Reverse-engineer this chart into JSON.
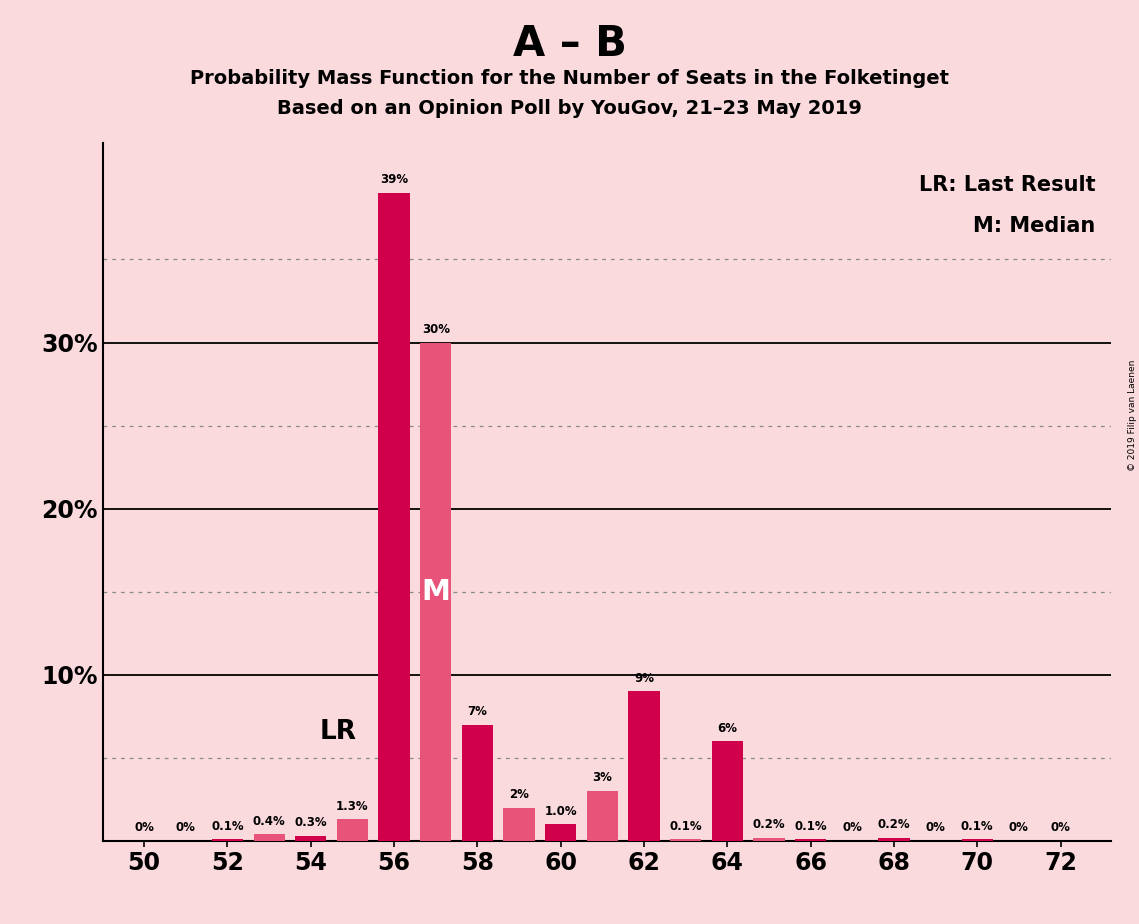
{
  "title_main": "A – B",
  "title_sub1": "Probability Mass Function for the Number of Seats in the Folketinget",
  "title_sub2": "Based on an Opinion Poll by YouGov, 21–23 May 2019",
  "copyright": "© 2019 Filip van Laenen",
  "seats": [
    50,
    51,
    52,
    53,
    54,
    55,
    56,
    57,
    58,
    59,
    60,
    61,
    62,
    63,
    64,
    65,
    66,
    67,
    68,
    69,
    70,
    71,
    72
  ],
  "values": [
    0.0,
    0.0,
    0.1,
    0.4,
    0.3,
    1.3,
    39.0,
    30.0,
    7.0,
    2.0,
    1.0,
    3.0,
    9.0,
    0.1,
    6.0,
    0.2,
    0.1,
    0.0,
    0.2,
    0.0,
    0.1,
    0.0,
    0.0
  ],
  "labels": [
    "0%",
    "0%",
    "0.1%",
    "0.4%",
    "0.3%",
    "1.3%",
    "39%",
    "30%",
    "7%",
    "2%",
    "1.0%",
    "3%",
    "9%",
    "0.1%",
    "6%",
    "0.2%",
    "0.1%",
    "0%",
    "0.2%",
    "0%",
    "0.1%",
    "0%",
    "0%"
  ],
  "color_crimson": "#D0004B",
  "color_hotpink": "#E8537A",
  "background_color": "#FADADD",
  "ylim_max": 42,
  "lr_seat": 55,
  "median_seat": 57,
  "legend_lr": "LR: Last Result",
  "legend_m": "M: Median",
  "bar_width": 0.75,
  "dotted_grid": [
    5,
    15,
    25,
    35
  ],
  "solid_grid": [
    10,
    20,
    30
  ],
  "ytick_positions": [
    10,
    20,
    30
  ],
  "ytick_labels": [
    "10%",
    "20%",
    "30%"
  ]
}
